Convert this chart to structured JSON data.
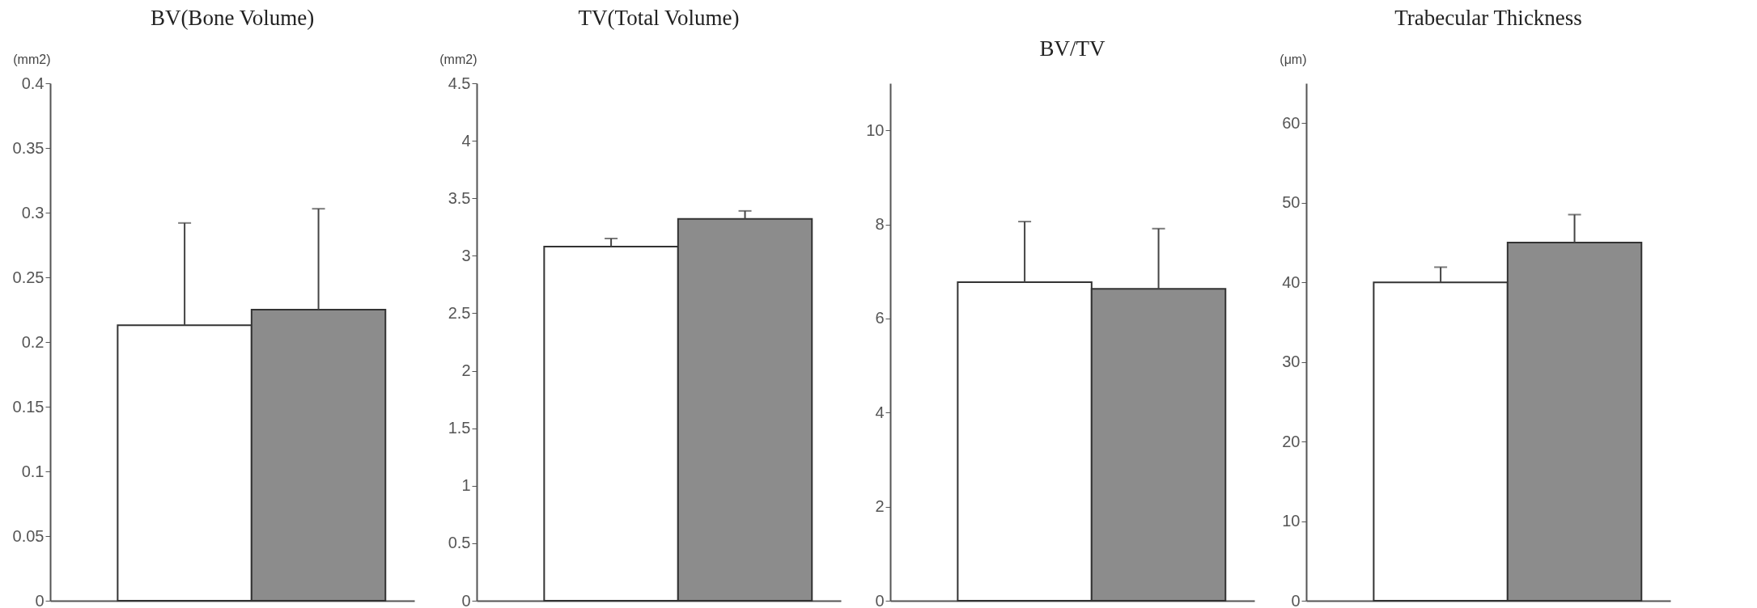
{
  "chart_data": [
    {
      "type": "bar",
      "title": "BV(Bone Volume)",
      "ylabel": "(mm2)",
      "categories": [
        null,
        null
      ],
      "values": [
        0.213,
        0.225
      ],
      "colors": [
        "#ffffff",
        "#8c8c8c"
      ],
      "errors": [
        [
          0.213,
          0.292
        ],
        [
          0.225,
          0.303
        ]
      ],
      "ylim": [
        0,
        0.4
      ],
      "yticks": [
        0,
        0.05,
        0.1,
        0.15,
        0.2,
        0.25,
        0.3,
        0.35,
        0.4
      ],
      "tick_labels": "y"
    },
    {
      "type": "bar",
      "title": "TV(Total Volume)",
      "ylabel": "(mm2)",
      "categories": [
        null,
        null
      ],
      "values": [
        3.08,
        3.32
      ],
      "colors": [
        "#ffffff",
        "#8c8c8c"
      ],
      "errors": [
        [
          3.08,
          3.15
        ],
        [
          3.32,
          3.39
        ]
      ],
      "ylim": [
        0,
        4.5
      ],
      "yticks": [
        0,
        0.5,
        1,
        1.5,
        2,
        2.5,
        3,
        3.5,
        4,
        4.5
      ],
      "tick_labels": "y"
    },
    {
      "type": "bar",
      "title": "BV/TV",
      "categories": [
        null,
        null
      ],
      "values": [
        6.77,
        6.63
      ],
      "colors": [
        "#ffffff",
        "#8c8c8c"
      ],
      "errors": [
        [
          6.77,
          8.06
        ],
        [
          6.63,
          7.91
        ]
      ],
      "ylim": [
        0,
        11
      ],
      "yticks": [
        0,
        2,
        4,
        6,
        8,
        10
      ],
      "tick_labels": "y"
    },
    {
      "type": "bar",
      "title": "Trabecular Thickness",
      "ylabel": "(μm)",
      "categories": [
        null,
        null
      ],
      "values": [
        40.0,
        45.0
      ],
      "colors": [
        "#ffffff",
        "#8c8c8c"
      ],
      "errors": [
        [
          40.0,
          41.9
        ],
        [
          45.0,
          48.5
        ]
      ],
      "ylim": [
        0,
        65
      ],
      "yticks": [
        0,
        10,
        20,
        30,
        40,
        50,
        60
      ],
      "tick_labels": "y"
    }
  ]
}
